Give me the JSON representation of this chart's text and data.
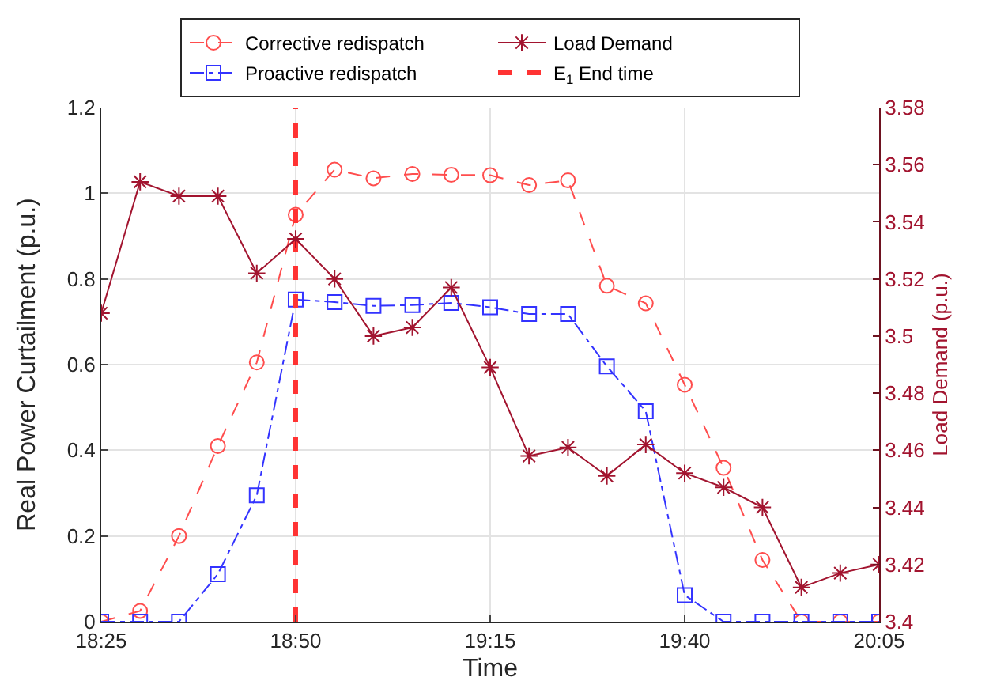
{
  "chart_data": {
    "type": "line",
    "xlabel": "Time",
    "ylabel": "Real Power Curtailment (p.u.)",
    "y2label": "Load Demand (p.u.)",
    "x": [
      18.4167,
      18.5,
      18.5833,
      18.6667,
      18.75,
      18.8333,
      18.9167,
      19,
      19.0833,
      19.1667,
      19.25,
      19.3333,
      19.4167,
      19.5,
      19.5833,
      19.6667,
      19.75,
      19.8333,
      19.9167,
      20,
      20.0833
    ],
    "series": [
      {
        "name": "Corrective redispatch",
        "color": "#ff4d4d",
        "marker": "circle",
        "line_style": "dashed",
        "values": [
          0,
          0.025,
          0.2,
          0.41,
          0.605,
          0.95,
          1.055,
          1.035,
          1.045,
          1.043,
          1.042,
          1.019,
          1.03,
          0.784,
          0.743,
          0.553,
          0.359,
          0.144,
          0,
          0,
          0
        ]
      },
      {
        "name": "Load Demand",
        "color": "#a2142f",
        "marker": "cross",
        "line_style": "solid",
        "axis": "y2",
        "values": [
          3.508,
          3.554,
          3.549,
          3.549,
          3.522,
          3.534,
          3.52,
          3.5,
          3.503,
          3.517,
          3.489,
          3.458,
          3.461,
          3.451,
          3.462,
          3.452,
          3.447,
          3.44,
          3.412,
          3.417,
          3.42
        ]
      },
      {
        "name": "Proactive redispatch",
        "color": "#3333ff",
        "marker": "square",
        "line_style": "dotted",
        "values": [
          0,
          0,
          0,
          0.111,
          0.295,
          0.752,
          0.746,
          0.737,
          0.739,
          0.744,
          0.734,
          0.718,
          0.718,
          0.596,
          0.491,
          0.062,
          0,
          0,
          0,
          0,
          0
        ]
      }
    ],
    "ref_lines": [
      {
        "axis": "x",
        "value": 18.8333,
        "label": "E$_{1}$ End time",
        "color": "#ff3333",
        "line_style": "dashed"
      }
    ],
    "xlim": [
      18.4167,
      20.0833
    ],
    "xticks": [
      {
        "value": 18.4167,
        "label": "18:25"
      },
      {
        "value": 18.8333,
        "label": "18:50"
      },
      {
        "value": 19.25,
        "label": "19:15"
      },
      {
        "value": 19.6667,
        "label": "19:40"
      },
      {
        "value": 20.0833,
        "label": "20:05"
      }
    ],
    "ylim": [
      0,
      1.2
    ],
    "yticks": [
      0,
      0.2,
      0.4,
      0.6,
      0.8,
      1,
      1.2
    ],
    "y2lim": [
      3.4,
      3.58
    ],
    "y2ticks": [
      3.4,
      3.42,
      3.44,
      3.46,
      3.48,
      3.5,
      3.52,
      3.54,
      3.56,
      3.58
    ],
    "grid": true,
    "legend": "top"
  }
}
